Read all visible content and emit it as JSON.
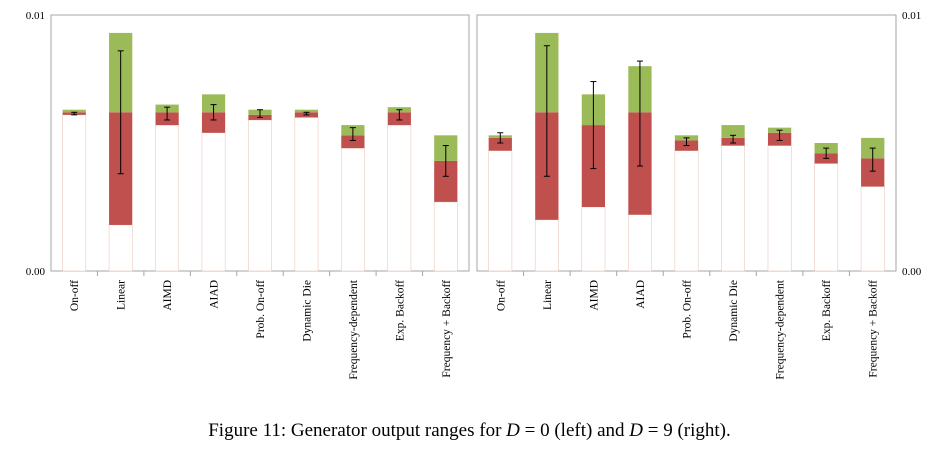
{
  "caption": {
    "prefix": "Figure 11: Generator output ranges for ",
    "d1_var": "D",
    "d1_rest": " = 0 (left) and ",
    "d2_var": "D",
    "d2_rest": " = 9 (right)."
  },
  "colors": {
    "base": "#ffffff",
    "base_edge": "#e8c8b8",
    "lower": "#c0504d",
    "upper": "#9bbb59",
    "frame": "#a6a6a6",
    "error_bar": "#000000"
  },
  "chart_data": [
    {
      "type": "bar",
      "stacked": true,
      "panel": "left",
      "categories": [
        "On-off",
        "Linear",
        "AIMD",
        "AIAD",
        "Prob. On-off",
        "Dynamic Die",
        "Frequency-dependent",
        "Exp. Backoff",
        "Frequency + Backoff"
      ],
      "series": [
        {
          "role": "base",
          "values": [
            0.0061,
            0.0018,
            0.0057,
            0.0054,
            0.0059,
            0.006,
            0.0048,
            0.0057,
            0.0027
          ]
        },
        {
          "role": "lower",
          "values": [
            0.0001,
            0.0044,
            0.0005,
            0.0008,
            0.0002,
            0.0002,
            0.0005,
            0.0005,
            0.0016
          ]
        },
        {
          "role": "upper",
          "values": [
            0.0001,
            0.0031,
            0.0003,
            0.0007,
            0.0002,
            0.0001,
            0.0004,
            0.0002,
            0.001
          ]
        }
      ],
      "error_bars": [
        {
          "low": 0.0061,
          "high": 0.0062
        },
        {
          "low": 0.0038,
          "high": 0.0086
        },
        {
          "low": 0.0059,
          "high": 0.0064
        },
        {
          "low": 0.0059,
          "high": 0.0065
        },
        {
          "low": 0.006,
          "high": 0.0063
        },
        {
          "low": 0.0061,
          "high": 0.0062
        },
        {
          "low": 0.0051,
          "high": 0.0056
        },
        {
          "low": 0.0059,
          "high": 0.0063
        },
        {
          "low": 0.0037,
          "high": 0.0049
        }
      ],
      "ylim": [
        0,
        0.01
      ],
      "yticks": [
        "0.00",
        "0.01"
      ],
      "ytick_side": "left"
    },
    {
      "type": "bar",
      "stacked": true,
      "panel": "right",
      "categories": [
        "On-off",
        "Linear",
        "AIMD",
        "AIAD",
        "Prob. On-off",
        "Dynamic Die",
        "Frequency-dependent",
        "Exp. Backoff",
        "Frequency + Backoff"
      ],
      "series": [
        {
          "role": "base",
          "values": [
            0.0047,
            0.002,
            0.0025,
            0.0022,
            0.0047,
            0.0049,
            0.0049,
            0.0042,
            0.0033
          ]
        },
        {
          "role": "lower",
          "values": [
            0.0005,
            0.0042,
            0.0032,
            0.004,
            0.0004,
            0.0003,
            0.0005,
            0.0004,
            0.0011
          ]
        },
        {
          "role": "upper",
          "values": [
            0.0001,
            0.0031,
            0.0012,
            0.0018,
            0.0002,
            0.0005,
            0.0002,
            0.0004,
            0.0008
          ]
        }
      ],
      "error_bars": [
        {
          "low": 0.005,
          "high": 0.0054
        },
        {
          "low": 0.0037,
          "high": 0.0088
        },
        {
          "low": 0.004,
          "high": 0.0074
        },
        {
          "low": 0.0041,
          "high": 0.0082
        },
        {
          "low": 0.0049,
          "high": 0.0052
        },
        {
          "low": 0.005,
          "high": 0.0053
        },
        {
          "low": 0.0051,
          "high": 0.0055
        },
        {
          "low": 0.0044,
          "high": 0.0048
        },
        {
          "low": 0.0039,
          "high": 0.0048
        }
      ],
      "ylim": [
        0,
        0.01
      ],
      "yticks": [
        "0.00",
        "0.01"
      ],
      "ytick_side": "right"
    }
  ]
}
